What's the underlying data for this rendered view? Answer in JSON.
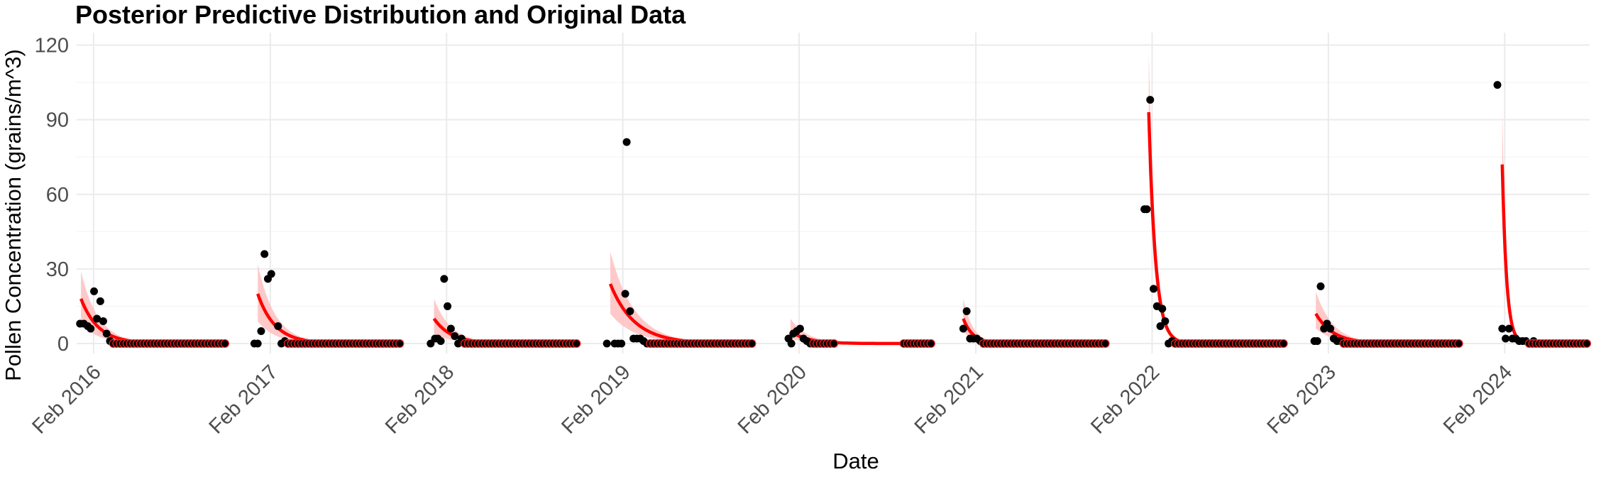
{
  "chart_data": {
    "type": "line",
    "title": "Posterior Predictive Distribution and Original Data",
    "xlabel": "Date",
    "ylabel": "Pollen Concentration (grains/m^3)",
    "ylim": [
      -4,
      125
    ],
    "xlim": [
      "2015-12-28",
      "2024-07-26"
    ],
    "grid": true,
    "colors": {
      "fit": "#ff0000",
      "band": "#ffc0c0",
      "points": "#000000",
      "grid": "#ebebeb"
    },
    "y_ticks": [
      0,
      30,
      60,
      90,
      120
    ],
    "y_tick_labels": [
      "0",
      "30",
      "60",
      "90",
      "120"
    ],
    "x_ticks": [
      "2016-02-01",
      "2017-02-01",
      "2018-02-01",
      "2019-02-01",
      "2020-02-01",
      "2021-02-01",
      "2022-02-01",
      "2023-02-01",
      "2024-02-01"
    ],
    "x_tick_labels": [
      "Feb 2016",
      "Feb 2017",
      "Feb 2018",
      "Feb 2019",
      "Feb 2020",
      "Feb 2021",
      "Feb 2022",
      "Feb 2023",
      "Feb 2024"
    ],
    "seasons": [
      {
        "fit_start": "2016-01-06",
        "fit_end": "2016-10-31",
        "fit_peak": 18,
        "band_upper": 29,
        "band_lower": 8,
        "decay_days": 36,
        "observed": [
          [
            "2016-01-04",
            8
          ],
          [
            "2016-01-12",
            8
          ],
          [
            "2016-01-20",
            7
          ],
          [
            "2016-01-26",
            6
          ],
          [
            "2016-02-02",
            21
          ],
          [
            "2016-02-08",
            10
          ],
          [
            "2016-02-15",
            17
          ],
          [
            "2016-02-21",
            9
          ],
          [
            "2016-02-28",
            4
          ],
          [
            "2016-03-06",
            1
          ]
        ],
        "zeros_start": "2016-03-13",
        "zeros_end": "2016-10-31"
      },
      {
        "fit_start": "2017-01-06",
        "fit_end": "2017-10-31",
        "fit_peak": 20,
        "band_upper": 32,
        "band_lower": 9,
        "decay_days": 36,
        "observed": [
          [
            "2016-12-30",
            0
          ],
          [
            "2017-01-06",
            0
          ],
          [
            "2017-01-13",
            5
          ],
          [
            "2017-01-20",
            36
          ],
          [
            "2017-01-27",
            26
          ],
          [
            "2017-02-03",
            28
          ],
          [
            "2017-02-17",
            7
          ],
          [
            "2017-02-24",
            0
          ],
          [
            "2017-03-03",
            1
          ]
        ],
        "zeros_start": "2017-03-10",
        "zeros_end": "2017-10-31"
      },
      {
        "fit_start": "2018-01-06",
        "fit_end": "2018-10-31",
        "fit_peak": 10,
        "band_upper": 18,
        "band_lower": 4,
        "decay_days": 36,
        "observed": [
          [
            "2017-12-30",
            0
          ],
          [
            "2018-01-08",
            2
          ],
          [
            "2018-01-14",
            2
          ],
          [
            "2018-01-20",
            1
          ],
          [
            "2018-01-27",
            26
          ],
          [
            "2018-02-03",
            15
          ],
          [
            "2018-02-10",
            6
          ],
          [
            "2018-02-18",
            3
          ],
          [
            "2018-02-25",
            0
          ],
          [
            "2018-03-04",
            2
          ]
        ],
        "zeros_start": "2018-03-11",
        "zeros_end": "2018-10-31"
      },
      {
        "fit_start": "2019-01-06",
        "fit_end": "2019-10-31",
        "fit_peak": 24,
        "band_upper": 37,
        "band_lower": 12,
        "decay_days": 50,
        "observed": [
          [
            "2018-12-30",
            0
          ],
          [
            "2019-01-15",
            0
          ],
          [
            "2019-01-22",
            0
          ],
          [
            "2019-01-29",
            0
          ],
          [
            "2019-02-06",
            20
          ],
          [
            "2019-02-09",
            81
          ],
          [
            "2019-02-16",
            13
          ],
          [
            "2019-02-23",
            2
          ],
          [
            "2019-03-02",
            2
          ],
          [
            "2019-03-09",
            2
          ],
          [
            "2019-03-16",
            1
          ],
          [
            "2019-03-23",
            0
          ]
        ],
        "zeros_start": "2019-03-30",
        "zeros_end": "2019-10-31"
      },
      {
        "fit_start": "2020-01-14",
        "fit_end": "2020-09-05",
        "fit_peak": 5,
        "band_upper": 10,
        "band_lower": 2,
        "decay_days": 36,
        "observed": [
          [
            "2020-01-10",
            2
          ],
          [
            "2020-01-16",
            0
          ],
          [
            "2020-01-20",
            4
          ],
          [
            "2020-01-27",
            5
          ],
          [
            "2020-02-03",
            6
          ],
          [
            "2020-02-10",
            2
          ],
          [
            "2020-02-17",
            1
          ],
          [
            "2020-02-24",
            0
          ]
        ],
        "zeros_start": "2020-03-02",
        "zeros_end": "2020-04-19",
        "zeros2_start": "2020-09-05",
        "zeros2_end": "2020-10-31"
      },
      {
        "fit_start": "2021-01-06",
        "fit_end": "2021-10-31",
        "fit_peak": 10,
        "band_upper": 18,
        "band_lower": 5,
        "decay_days": 20,
        "observed": [
          [
            "2021-01-06",
            6
          ],
          [
            "2021-01-13",
            13
          ],
          [
            "2021-01-20",
            2
          ],
          [
            "2021-01-27",
            2
          ],
          [
            "2021-02-03",
            2
          ],
          [
            "2021-02-10",
            1
          ]
        ],
        "zeros_start": "2021-02-17",
        "zeros_end": "2021-10-31"
      },
      {
        "fit_start": "2022-01-25",
        "fit_end": "2022-10-31",
        "fit_peak": 93,
        "band_upper": 117,
        "band_lower": 70,
        "decay_days": 14,
        "observed": [
          [
            "2022-01-16",
            54
          ],
          [
            "2022-01-21",
            54
          ],
          [
            "2022-01-28",
            98
          ],
          [
            "2022-02-04",
            22
          ],
          [
            "2022-02-11",
            15
          ],
          [
            "2022-02-18",
            7
          ],
          [
            "2022-02-22",
            14
          ],
          [
            "2022-02-28",
            9
          ],
          [
            "2022-03-07",
            0
          ],
          [
            "2022-03-14",
            1
          ]
        ],
        "zeros_start": "2022-03-21",
        "zeros_end": "2022-10-31"
      },
      {
        "fit_start": "2023-01-06",
        "fit_end": "2023-10-31",
        "fit_peak": 12,
        "band_upper": 21,
        "band_lower": 6,
        "decay_days": 36,
        "observed": [
          [
            "2023-01-03",
            1
          ],
          [
            "2023-01-09",
            1
          ],
          [
            "2023-01-16",
            23
          ],
          [
            "2023-01-23",
            6
          ],
          [
            "2023-01-29",
            8
          ],
          [
            "2023-02-05",
            6
          ],
          [
            "2023-02-12",
            2
          ],
          [
            "2023-02-19",
            1
          ],
          [
            "2023-02-26",
            1
          ]
        ],
        "zeros_start": "2023-03-05",
        "zeros_end": "2023-10-31"
      },
      {
        "fit_start": "2024-01-27",
        "fit_end": "2024-07-23",
        "fit_peak": 72,
        "band_upper": 94,
        "band_lower": 50,
        "decay_days": 9,
        "observed": [
          [
            "2024-01-17",
            104
          ],
          [
            "2024-01-27",
            6
          ],
          [
            "2024-02-03",
            2
          ],
          [
            "2024-02-10",
            6
          ],
          [
            "2024-02-17",
            2
          ],
          [
            "2024-02-24",
            2
          ],
          [
            "2024-03-02",
            1
          ],
          [
            "2024-03-09",
            1
          ],
          [
            "2024-03-16",
            1
          ],
          [
            "2024-04-01",
            1
          ]
        ],
        "zeros_start": "2024-03-23",
        "zeros_end": "2024-07-23"
      }
    ]
  }
}
